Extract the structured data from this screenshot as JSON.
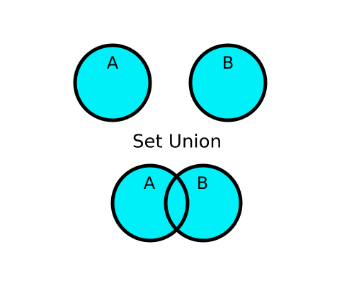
{
  "diagram": {
    "caption": "Set Union",
    "colors": {
      "fill": "#00F0FA",
      "stroke": "#000000"
    },
    "top": {
      "set_a_label": "A",
      "set_b_label": "B"
    },
    "bottom": {
      "set_a_label": "A",
      "set_b_label": "B"
    }
  }
}
